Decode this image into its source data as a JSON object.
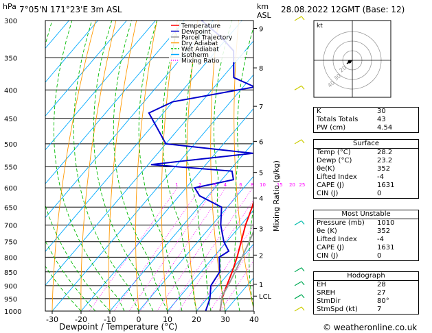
{
  "header": {
    "hpa_label": "hPa",
    "location": "7°05'N  171°23'E  3m  ASL",
    "km_label": "km",
    "asl_label": "ASL",
    "datetime": "28.08.2022  12GMT  (Base: 12)"
  },
  "chart_data": {
    "type": "line",
    "xlabel": "Dewpoint / Temperature (°C)",
    "ylabel": "Mixing Ratio (g/kg)",
    "x_ticks": [
      -30,
      -20,
      -10,
      0,
      10,
      20,
      30,
      40
    ],
    "pressure_levels": [
      300,
      350,
      400,
      450,
      500,
      550,
      600,
      650,
      700,
      750,
      800,
      850,
      900,
      950,
      1000
    ],
    "km_ticks": [
      {
        "label": "9",
        "p": 310
      },
      {
        "label": "8",
        "p": 365
      },
      {
        "label": "7",
        "p": 428
      },
      {
        "label": "6",
        "p": 495
      },
      {
        "label": "5",
        "p": 563
      },
      {
        "label": "4",
        "p": 626
      },
      {
        "label": "3",
        "p": 710
      },
      {
        "label": "2",
        "p": 793
      },
      {
        "label": "1",
        "p": 895
      },
      {
        "label": "LCL",
        "p": 940
      }
    ],
    "mixing_ratio_labels": [
      "1",
      "2",
      "3",
      "4",
      "6",
      "8",
      "10",
      "15",
      "20",
      "25"
    ],
    "legend": [
      "Temperature",
      "Dewpoint",
      "Parcel Trajectory",
      "Dry Adiabat",
      "Wet Adiabat",
      "Isotherm",
      "Mixing Ratio"
    ],
    "legend_colors": [
      "#ff0000",
      "#0000cc",
      "#999999",
      "#ff9900",
      "#00bb00",
      "#00aaff",
      "#ff00ff"
    ],
    "series": [
      {
        "name": "Temperature",
        "color": "#ff0000",
        "points": [
          [
            1000,
            28.2
          ],
          [
            950,
            25.2
          ],
          [
            900,
            23.0
          ],
          [
            850,
            20.8
          ],
          [
            800,
            18.2
          ],
          [
            750,
            15.0
          ],
          [
            700,
            11.6
          ],
          [
            650,
            8.6
          ],
          [
            600,
            4.8
          ],
          [
            550,
            1.0
          ],
          [
            500,
            -4.4
          ],
          [
            450,
            -9.8
          ],
          [
            400,
            -16.6
          ],
          [
            350,
            -24.6
          ],
          [
            300,
            -33.6
          ]
        ]
      },
      {
        "name": "Dewpoint",
        "color": "#0000cc",
        "points": [
          [
            1000,
            23.2
          ],
          [
            950,
            21.0
          ],
          [
            900,
            17.5
          ],
          [
            850,
            16.5
          ],
          [
            800,
            12.0
          ],
          [
            780,
            13.5
          ],
          [
            750,
            9.0
          ],
          [
            700,
            3.0
          ],
          [
            650,
            -2.0
          ],
          [
            620,
            -13.0
          ],
          [
            600,
            -17.0
          ],
          [
            580,
            -6.0
          ],
          [
            560,
            -9.0
          ],
          [
            545,
            -39.0
          ],
          [
            520,
            -7.0
          ],
          [
            500,
            -40.0
          ],
          [
            440,
            -55.0
          ],
          [
            420,
            -50.0
          ],
          [
            395,
            -26.0
          ],
          [
            380,
            -36.0
          ],
          [
            340,
            -44.0
          ],
          [
            320,
            -53.0
          ],
          [
            300,
            -64.0
          ]
        ]
      },
      {
        "name": "Parcel Trajectory",
        "color": "#999999",
        "points": [
          [
            1000,
            28.2
          ],
          [
            940,
            24.5
          ],
          [
            900,
            23.5
          ],
          [
            850,
            21.8
          ],
          [
            800,
            19.9
          ],
          [
            750,
            17.8
          ],
          [
            700,
            15.4
          ],
          [
            650,
            12.8
          ],
          [
            600,
            9.8
          ],
          [
            550,
            6.4
          ],
          [
            500,
            2.4
          ],
          [
            450,
            -2.2
          ],
          [
            400,
            -7.8
          ],
          [
            350,
            -14.6
          ],
          [
            300,
            -23.0
          ]
        ]
      }
    ]
  },
  "hodograph": {
    "kt_label": "kt",
    "ring_labels": [
      "40",
      "30",
      "20"
    ]
  },
  "indices": {
    "top": [
      {
        "key": "K",
        "value": "30"
      },
      {
        "key": "Totals Totals",
        "value": "43"
      },
      {
        "key": "PW (cm)",
        "value": "4.54"
      }
    ],
    "surface": {
      "title": "Surface",
      "rows": [
        {
          "key": "Temp (°C)",
          "value": "28.2"
        },
        {
          "key": "Dewp (°C)",
          "value": "23.2"
        },
        {
          "key": "θe(K)",
          "value": "352"
        },
        {
          "key": "Lifted Index",
          "value": "-4"
        },
        {
          "key": "CAPE (J)",
          "value": "1631"
        },
        {
          "key": "CIN (J)",
          "value": "0"
        }
      ]
    },
    "most_unstable": {
      "title": "Most Unstable",
      "rows": [
        {
          "key": "Pressure (mb)",
          "value": "1010"
        },
        {
          "key": "θe (K)",
          "value": "352"
        },
        {
          "key": "Lifted Index",
          "value": "-4"
        },
        {
          "key": "CAPE (J)",
          "value": "1631"
        },
        {
          "key": "CIN (J)",
          "value": "0"
        }
      ]
    },
    "hodograph": {
      "title": "Hodograph",
      "rows": [
        {
          "key": "EH",
          "value": "28"
        },
        {
          "key": "SREH",
          "value": "27"
        },
        {
          "key": "StmDir",
          "value": "80°"
        },
        {
          "key": "StmSpd (kt)",
          "value": "7"
        }
      ]
    }
  },
  "footer": {
    "copyright": "© weatheronline.co.uk"
  }
}
